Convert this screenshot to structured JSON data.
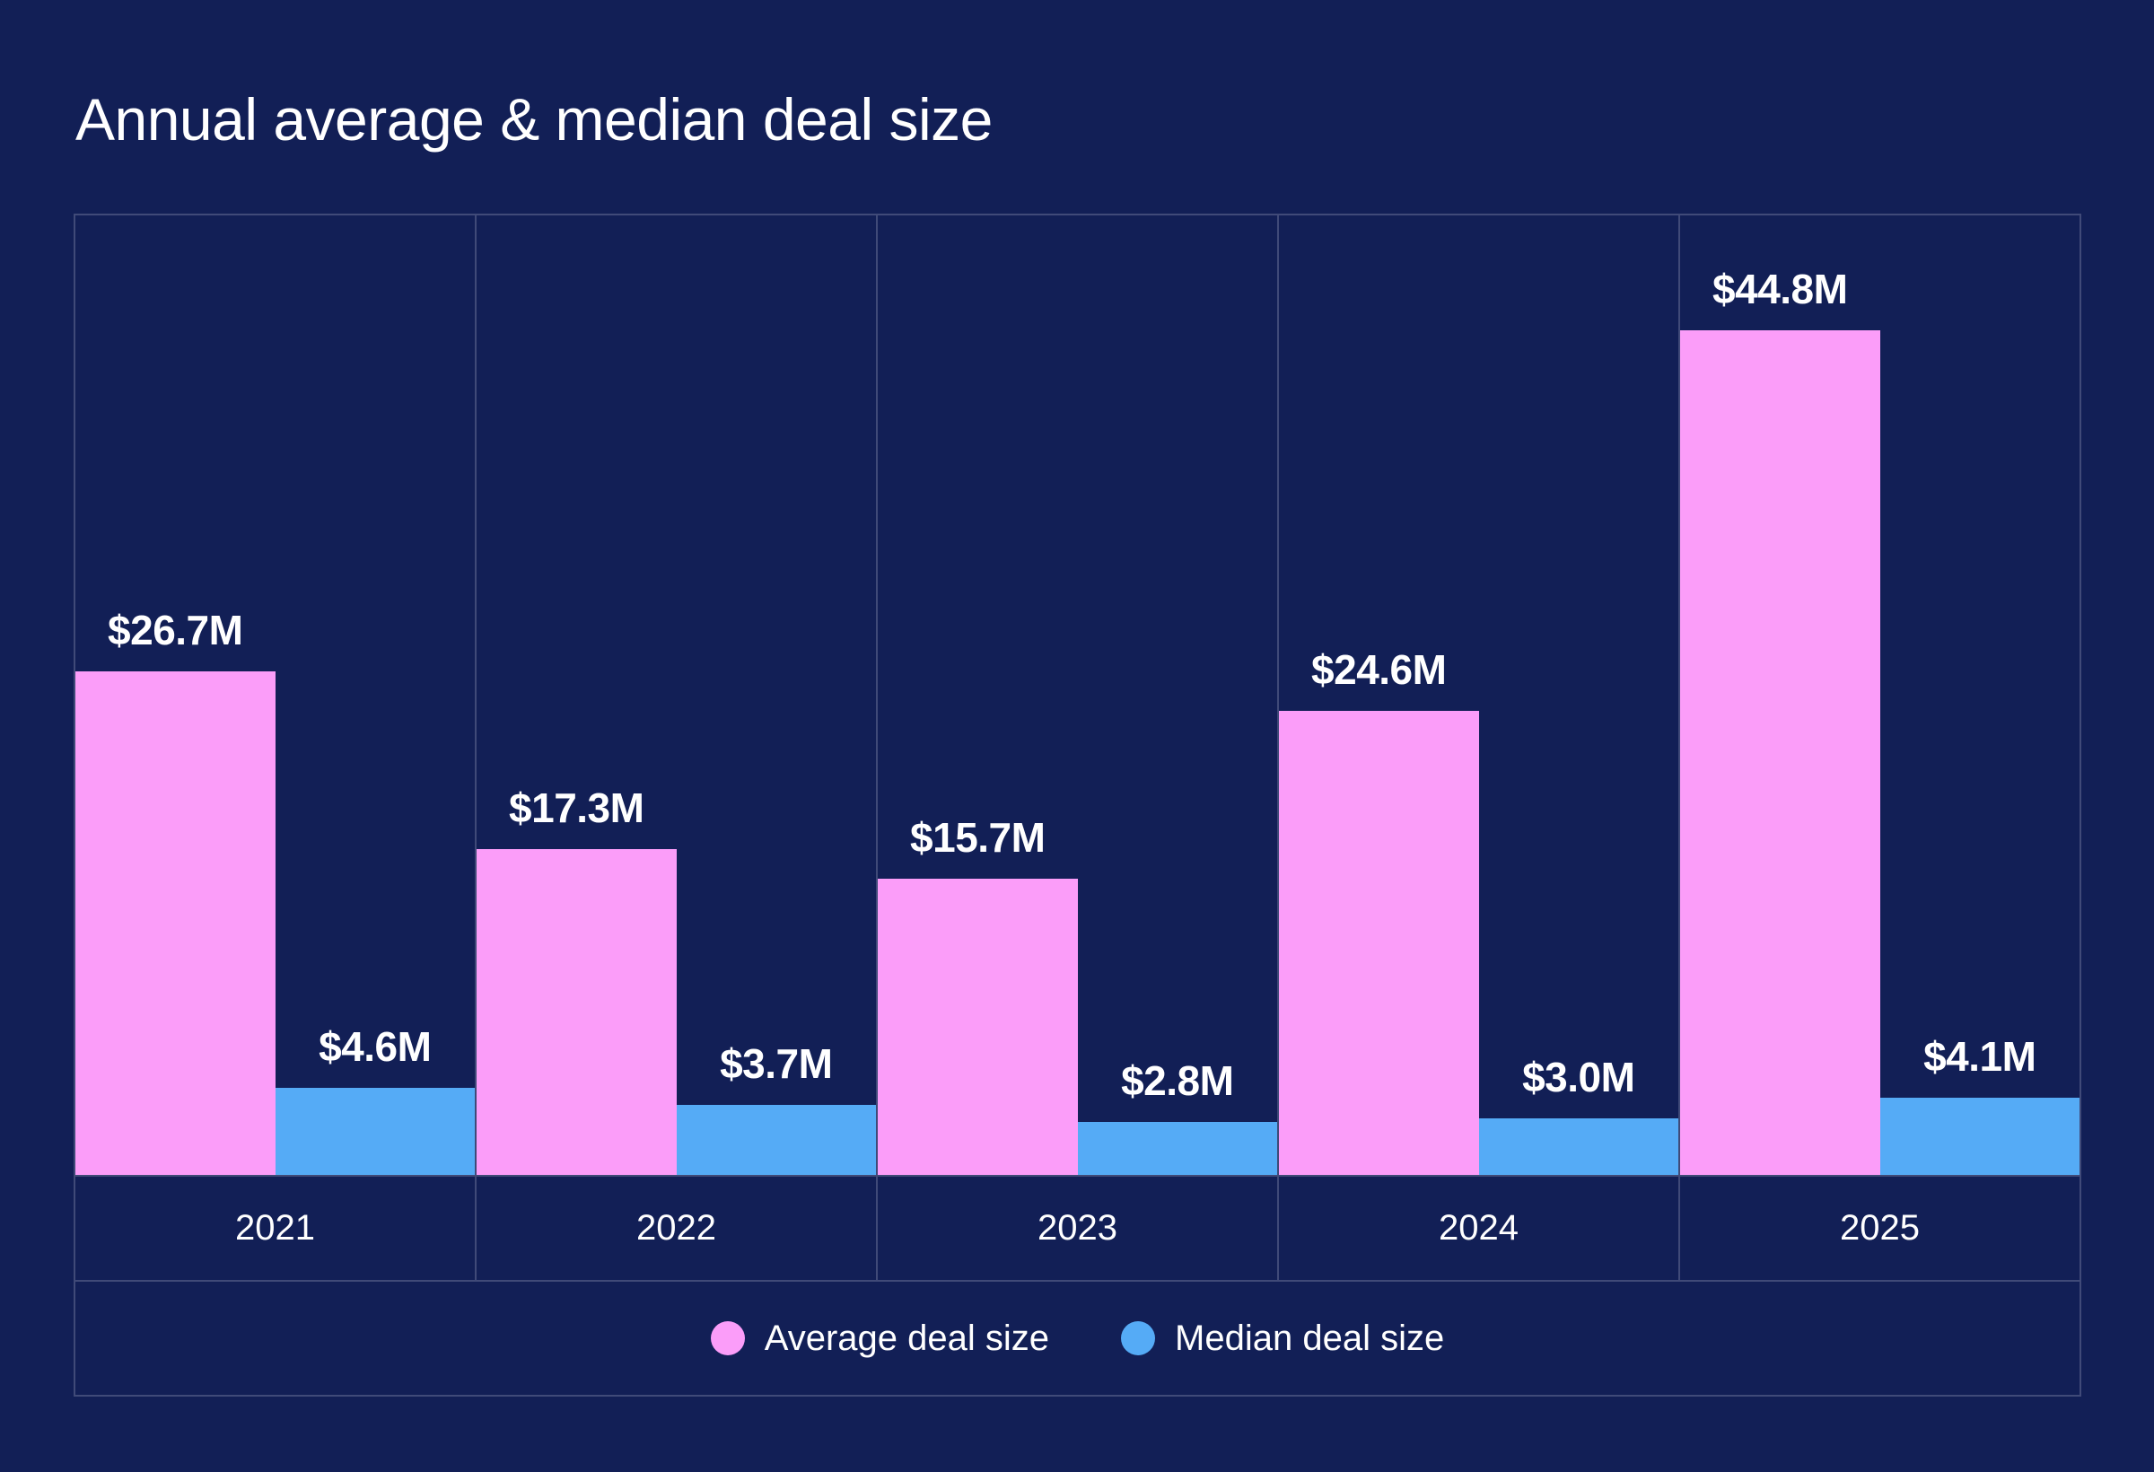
{
  "title": "Annual average & median deal size",
  "colors": {
    "background": "#121f56",
    "gridline": "#404a78",
    "text": "#ffffff",
    "average_series": "#fb9df9",
    "median_series": "#55abf6"
  },
  "chart_data": {
    "type": "bar",
    "title": "Annual average & median deal size",
    "categories": [
      "2021",
      "2022",
      "2023",
      "2024",
      "2025"
    ],
    "series": [
      {
        "name": "Average deal size",
        "color": "#fb9df9",
        "values": [
          26.7,
          17.3,
          15.7,
          24.6,
          44.8
        ],
        "labels": [
          "$26.7M",
          "$17.3M",
          "$15.7M",
          "$24.6M",
          "$44.8M"
        ]
      },
      {
        "name": "Median deal size",
        "color": "#55abf6",
        "values": [
          4.6,
          3.7,
          2.8,
          3.0,
          4.1
        ],
        "labels": [
          "$4.6M",
          "$3.7M",
          "$2.8M",
          "$3.0M",
          "$4.1M"
        ]
      }
    ],
    "value_unit": "USD millions",
    "ylim": [
      0,
      47
    ],
    "xlabel": "",
    "ylabel": "",
    "grid": "vertical column separators only, no y-axis ticks",
    "value_labels": "shown above each bar",
    "legend_position": "bottom"
  },
  "legend": {
    "items": [
      {
        "label": "Average deal size",
        "color": "#fb9df9"
      },
      {
        "label": "Median deal size",
        "color": "#55abf6"
      }
    ]
  }
}
